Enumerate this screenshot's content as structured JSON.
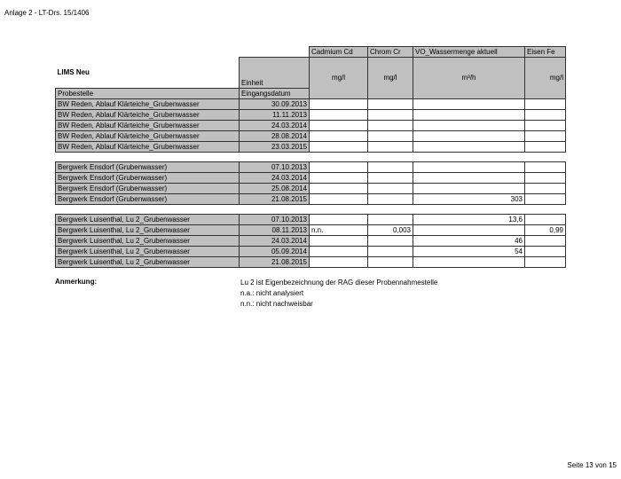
{
  "header": "Anlage 2 - LT-Drs. 15/1406",
  "footer": "Seite 13 von 15",
  "table": {
    "title": "LIMS Neu",
    "einheit_label": "Einheit",
    "probestelle_label": "Probestelle",
    "datum_label": "Eingangsdatum",
    "columns": [
      {
        "name": "Cadmium Cd",
        "unit": "mg/l"
      },
      {
        "name": "Chrom Cr",
        "unit": "mg/l"
      },
      {
        "name": "VO_Wassermenge aktuell",
        "unit": "m³/h"
      },
      {
        "name": "Eisen Fe",
        "unit": "mg/l"
      }
    ],
    "groups": [
      {
        "rows": [
          {
            "site": "BW Reden, Ablauf Klärteiche_Grubenwasser",
            "date": "30.09.2013",
            "values": [
              "",
              "",
              "",
              ""
            ]
          },
          {
            "site": "BW Reden, Ablauf Klärteiche_Grubenwasser",
            "date": "11.11.2013",
            "values": [
              "",
              "",
              "",
              ""
            ]
          },
          {
            "site": "BW Reden, Ablauf Klärteiche_Grubenwasser",
            "date": "24.03.2014",
            "values": [
              "",
              "",
              "",
              ""
            ]
          },
          {
            "site": "BW Reden, Ablauf Klärteiche_Grubenwasser",
            "date": "28.08.2014",
            "values": [
              "",
              "",
              "",
              ""
            ]
          },
          {
            "site": "BW Reden, Ablauf Klärteiche_Grubenwasser",
            "date": "23.03.2015",
            "values": [
              "",
              "",
              "",
              ""
            ]
          }
        ]
      },
      {
        "rows": [
          {
            "site": "Bergwerk Ensdorf (Grubenwasser)",
            "date": "07.10.2013",
            "values": [
              "",
              "",
              "",
              ""
            ]
          },
          {
            "site": "Bergwerk Ensdorf (Grubenwasser)",
            "date": "24.03.2014",
            "values": [
              "",
              "",
              "",
              ""
            ]
          },
          {
            "site": "Bergwerk Ensdorf (Grubenwasser)",
            "date": "25.08.2014",
            "values": [
              "",
              "",
              "",
              ""
            ]
          },
          {
            "site": "Bergwerk Ensdorf (Grubenwasser)",
            "date": "21.08.2015",
            "values": [
              "",
              "",
              "303",
              ""
            ]
          }
        ]
      },
      {
        "rows": [
          {
            "site": "Bergwerk Luisenthal, Lu 2_Grubenwasser",
            "date": "07.10.2013",
            "values": [
              "",
              "",
              "13,6",
              ""
            ]
          },
          {
            "site": "Bergwerk Luisenthal, Lu 2_Grubenwasser",
            "date": "08.11.2013",
            "values": [
              "n.n.",
              "0,003",
              "",
              "0,99"
            ]
          },
          {
            "site": "Bergwerk Luisenthal, Lu 2_Grubenwasser",
            "date": "24.03.2014",
            "values": [
              "",
              "",
              "46",
              ""
            ]
          },
          {
            "site": "Bergwerk Luisenthal, Lu 2_Grubenwasser",
            "date": "05.09.2014",
            "values": [
              "",
              "",
              "54",
              ""
            ]
          },
          {
            "site": "Bergwerk Luisenthal, Lu 2_Grubenwasser",
            "date": "21.08.2015",
            "values": [
              "",
              "",
              "",
              ""
            ]
          }
        ]
      }
    ]
  },
  "notes": {
    "label": "Anmerkung:",
    "lines": [
      "Lu 2 ist Eigenbezeichnung der RAG dieser Probennahmestelle",
      "n.a.: nicht analysiert",
      "n.n.: nicht nachweisbar"
    ]
  }
}
